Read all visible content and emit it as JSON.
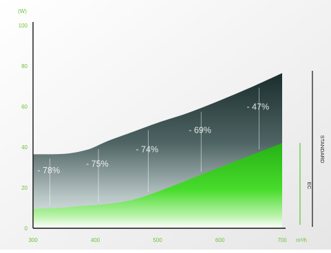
{
  "chart_data": {
    "type": "area",
    "ylabel": "(W)",
    "xlabel": "m³/h",
    "xlim": [
      300,
      700
    ],
    "ylim": [
      0,
      100
    ],
    "x_ticks": [
      300,
      400,
      500,
      600,
      700
    ],
    "y_ticks": [
      0,
      20,
      40,
      60,
      80,
      100
    ],
    "series": [
      {
        "name": "STANDARD",
        "color": "#1e3333",
        "x": [
          300,
          330,
          360,
          390,
          420,
          460,
          500,
          550,
          600,
          650,
          700
        ],
        "values": [
          36.5,
          36.5,
          37,
          39,
          43,
          47.5,
          52,
          57,
          63,
          69.5,
          76.5
        ]
      },
      {
        "name": "EC",
        "color": "#2dc31c",
        "x": [
          300,
          340,
          380,
          420,
          460,
          500,
          550,
          600,
          650,
          700
        ],
        "values": [
          9.5,
          10,
          11,
          12,
          14,
          18,
          24,
          30,
          36,
          42
        ]
      }
    ],
    "annotations": [
      {
        "text": "- 78%",
        "x": 327
      },
      {
        "text": "- 75%",
        "x": 405
      },
      {
        "text": "- 74%",
        "x": 485
      },
      {
        "text": "- 69%",
        "x": 570
      },
      {
        "text": "- 47%",
        "x": 663
      }
    ],
    "grid": false
  }
}
